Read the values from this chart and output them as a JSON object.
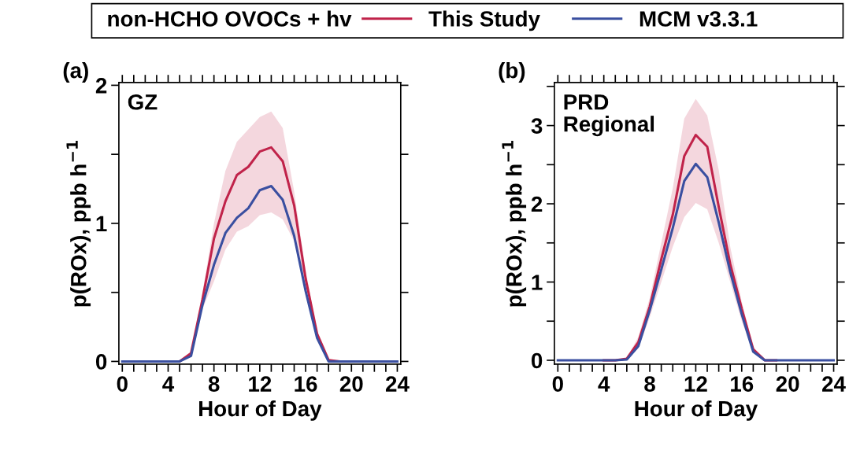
{
  "chart_data": [
    {
      "type": "line",
      "title": "(a)",
      "xlabel": "Hour of Day",
      "ylabel": "p(ROx), ppb h$^{−1}$",
      "annotations": [
        "GZ"
      ],
      "legend_title": "non-HCHO OVOCs + hv",
      "legend": "top",
      "grid": false,
      "x": [
        0,
        1,
        2,
        3,
        4,
        5,
        6,
        7,
        8,
        9,
        10,
        11,
        12,
        13,
        14,
        15,
        16,
        17,
        18,
        19,
        20,
        21,
        22,
        23,
        24
      ],
      "xlim": [
        -0.3,
        24.3
      ],
      "xticks": [
        0,
        {
          "value": 1,
          "label": null
        },
        {
          "value": 2,
          "label": null
        },
        {
          "value": 3,
          "label": null
        },
        4,
        {
          "value": 5,
          "label": null
        },
        {
          "value": 6,
          "label": null
        },
        {
          "value": 7,
          "label": null
        },
        8,
        {
          "value": 9,
          "label": null
        },
        {
          "value": 10,
          "label": null
        },
        {
          "value": 11,
          "label": null
        },
        12,
        {
          "value": 13,
          "label": null
        },
        {
          "value": 14,
          "label": null
        },
        {
          "value": 15,
          "label": null
        },
        16,
        {
          "value": 17,
          "label": null
        },
        {
          "value": 18,
          "label": null
        },
        {
          "value": 19,
          "label": null
        },
        20,
        {
          "value": 21,
          "label": null
        },
        {
          "value": 22,
          "label": null
        },
        {
          "value": 23,
          "label": null
        },
        24
      ],
      "ylim": [
        -0.02,
        2.02
      ],
      "yticks": [
        0,
        {
          "value": 0.5,
          "label": null
        },
        1,
        {
          "value": 1.5,
          "label": null
        },
        2
      ],
      "series": [
        {
          "name": "This Study",
          "color": "#c0234a",
          "values": [
            null,
            null,
            null,
            null,
            0,
            0,
            0.06,
            0.45,
            0.89,
            1.16,
            1.35,
            1.41,
            1.52,
            1.55,
            1.45,
            1.13,
            0.6,
            0.2,
            0.01,
            0,
            0,
            null,
            null,
            null,
            null
          ],
          "lower": [
            0,
            0,
            0,
            0,
            0,
            0,
            0.05,
            0.38,
            0.58,
            0.81,
            0.94,
            0.98,
            1.06,
            1.08,
            1.03,
            0.87,
            0.53,
            0.15,
            0,
            0,
            0,
            0,
            0,
            0,
            0
          ],
          "upper": [
            0,
            0,
            0,
            0,
            0,
            0,
            0.07,
            0.5,
            1.0,
            1.38,
            1.59,
            1.68,
            1.77,
            1.81,
            1.69,
            1.23,
            0.66,
            0.22,
            0.02,
            0,
            0,
            0,
            0,
            0,
            0
          ]
        },
        {
          "name": "MCM v3.3.1",
          "color": "#3a4fa0",
          "values": [
            0,
            0,
            0,
            0,
            0,
            0,
            0.04,
            0.41,
            0.7,
            0.93,
            1.04,
            1.11,
            1.24,
            1.27,
            1.17,
            0.91,
            0.51,
            0.17,
            0,
            0,
            0,
            0,
            0,
            0,
            0
          ]
        }
      ]
    },
    {
      "type": "line",
      "title": "(b)",
      "xlabel": "Hour of Day",
      "ylabel": "p(ROx), ppb h$^{−1}$",
      "annotations": [
        "PRD\nRegional"
      ],
      "grid": false,
      "x": [
        0,
        1,
        2,
        3,
        4,
        5,
        6,
        7,
        8,
        9,
        10,
        11,
        12,
        13,
        14,
        15,
        16,
        17,
        18,
        19,
        20,
        21,
        22,
        23,
        24
      ],
      "xlim": [
        -0.3,
        24.3
      ],
      "xticks": [
        0,
        {
          "value": 1,
          "label": null
        },
        {
          "value": 2,
          "label": null
        },
        {
          "value": 3,
          "label": null
        },
        4,
        {
          "value": 5,
          "label": null
        },
        {
          "value": 6,
          "label": null
        },
        {
          "value": 7,
          "label": null
        },
        8,
        {
          "value": 9,
          "label": null
        },
        {
          "value": 10,
          "label": null
        },
        {
          "value": 11,
          "label": null
        },
        12,
        {
          "value": 13,
          "label": null
        },
        {
          "value": 14,
          "label": null
        },
        {
          "value": 15,
          "label": null
        },
        16,
        {
          "value": 17,
          "label": null
        },
        {
          "value": 18,
          "label": null
        },
        {
          "value": 19,
          "label": null
        },
        20,
        {
          "value": 21,
          "label": null
        },
        {
          "value": 22,
          "label": null
        },
        {
          "value": 23,
          "label": null
        },
        24
      ],
      "ylim": [
        -0.05,
        3.55
      ],
      "yticks": [
        0,
        {
          "value": 0.5,
          "label": null
        },
        1,
        {
          "value": 1.5,
          "label": null
        },
        2,
        {
          "value": 2.5,
          "label": null
        },
        3,
        {
          "value": 3.5,
          "label": null
        }
      ],
      "series": [
        {
          "color": "#c0234a",
          "values": [
            null,
            null,
            null,
            null,
            0,
            0,
            0.02,
            0.23,
            0.69,
            1.29,
            1.86,
            2.61,
            2.88,
            2.73,
            1.96,
            1.23,
            0.66,
            0.14,
            0,
            0,
            null,
            null,
            null,
            null,
            null
          ],
          "lower": [
            0,
            0,
            0,
            0,
            0,
            0,
            0.01,
            0.15,
            0.55,
            1.0,
            1.45,
            1.83,
            2.01,
            1.93,
            1.5,
            1.0,
            0.5,
            0.1,
            0,
            0,
            0,
            0,
            0,
            0,
            0
          ],
          "upper": [
            0,
            0,
            0,
            0,
            0,
            0,
            0.03,
            0.3,
            0.8,
            1.5,
            2.2,
            3.09,
            3.34,
            3.13,
            2.43,
            1.45,
            0.75,
            0.17,
            0.01,
            0,
            0,
            0,
            0,
            0,
            0
          ]
        },
        {
          "color": "#3a4fa0",
          "values": [
            0,
            0,
            0,
            0,
            0,
            0,
            0.01,
            0.18,
            0.64,
            1.16,
            1.69,
            2.29,
            2.51,
            2.34,
            1.76,
            1.13,
            0.59,
            0.11,
            0,
            0,
            0,
            0,
            0,
            0,
            0
          ]
        }
      ]
    }
  ]
}
